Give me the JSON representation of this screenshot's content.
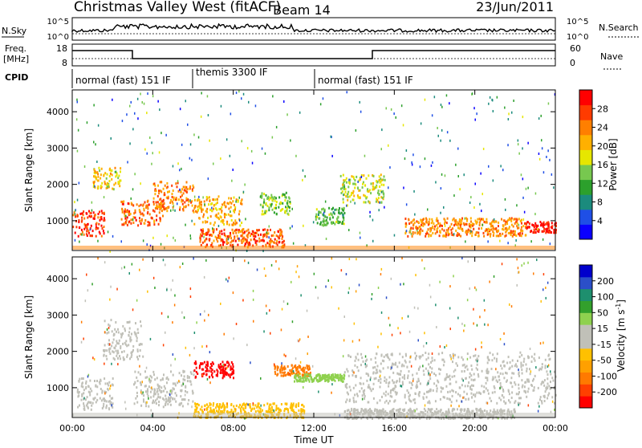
{
  "header": {
    "station": "Christmas Valley West (fitACF)",
    "beam": "Beam 14",
    "date": "23/Jun/2011"
  },
  "noise_panel": {
    "left_label": "N.Sky",
    "right_label": "N.Search",
    "y_ticks": [
      "10^5",
      "10^0"
    ]
  },
  "freq_panel": {
    "left_label_line1": "Freq.",
    "left_label_line2": "[MHz]",
    "right_label": "Nave",
    "left_ticks": [
      "18",
      "8"
    ],
    "right_ticks": [
      "60",
      "0"
    ]
  },
  "cpid_panel": {
    "label": "CPID",
    "segments": [
      {
        "text": "normal (fast) 151 IF",
        "start_hour": 0,
        "end_hour": 6
      },
      {
        "text": "themis 3300 IF",
        "start_hour": 6,
        "end_hour": 12
      },
      {
        "text": "normal (fast) 151 IF",
        "start_hour": 12,
        "end_hour": 24
      }
    ]
  },
  "chart_data": [
    {
      "type": "heatmap",
      "title": "",
      "xlabel": "Time UT",
      "ylabel": "Slant Range [km]",
      "xlim": [
        0,
        24
      ],
      "ylim": [
        180,
        4600
      ],
      "x_ticks": [
        "00:00",
        "04:00",
        "08:00",
        "12:00",
        "16:00",
        "20:00",
        "00:00"
      ],
      "y_ticks": [
        "1000",
        "2000",
        "3000",
        "4000"
      ],
      "colorbar": {
        "label": "Power [dB]",
        "ticks": [
          "4",
          "8",
          "12",
          "16",
          "20",
          "24",
          "28"
        ],
        "range": [
          0,
          30
        ],
        "colors": [
          "#0a00ff",
          "#1f4fe6",
          "#1b8b7d",
          "#2ca02c",
          "#77c84f",
          "#e6e600",
          "#ffb000",
          "#ff7f00",
          "#ff3b00",
          "#ff0000"
        ]
      },
      "echo_regions": [
        {
          "t0": 0.0,
          "t1": 1.6,
          "r0": 600,
          "r1": 1300,
          "power": 26
        },
        {
          "t0": 1.0,
          "t1": 2.4,
          "r0": 1900,
          "r1": 2500,
          "power": 18
        },
        {
          "t0": 2.4,
          "t1": 4.5,
          "r0": 900,
          "r1": 1600,
          "power": 24
        },
        {
          "t0": 4.0,
          "t1": 6.0,
          "r0": 1300,
          "r1": 2100,
          "power": 22
        },
        {
          "t0": 6.0,
          "t1": 8.4,
          "r0": 900,
          "r1": 1700,
          "power": 20
        },
        {
          "t0": 6.3,
          "t1": 10.5,
          "r0": 300,
          "r1": 800,
          "power": 24
        },
        {
          "t0": 9.3,
          "t1": 10.8,
          "r0": 1200,
          "r1": 1800,
          "power": 14
        },
        {
          "t0": 12.0,
          "t1": 13.5,
          "r0": 900,
          "r1": 1400,
          "power": 12
        },
        {
          "t0": 13.3,
          "t1": 15.5,
          "r0": 1500,
          "r1": 2300,
          "power": 16
        },
        {
          "t0": 16.5,
          "t1": 22.5,
          "r0": 600,
          "r1": 1100,
          "power": 22
        },
        {
          "t0": 22.5,
          "t1": 24.0,
          "r0": 700,
          "r1": 1000,
          "power": 28
        }
      ]
    },
    {
      "type": "heatmap",
      "title": "",
      "xlabel": "Time UT",
      "ylabel": "Slant Range [km]",
      "xlim": [
        0,
        24
      ],
      "ylim": [
        180,
        4600
      ],
      "x_ticks": [
        "00:00",
        "04:00",
        "08:00",
        "12:00",
        "16:00",
        "20:00",
        "00:00"
      ],
      "y_ticks": [
        "1000",
        "2000",
        "3000",
        "4000"
      ],
      "colorbar": {
        "label": "Velocity [m s",
        "label_superscript": "-1",
        "label_close": "]",
        "ticks": [
          "200",
          "100",
          "50",
          "15",
          "-15",
          "-50",
          "-100",
          "-200"
        ],
        "range": [
          -250,
          250
        ],
        "colors": [
          "#0000cc",
          "#2b4fc8",
          "#1e8f6e",
          "#33a02c",
          "#8fd14f",
          "#c0c0b8",
          "#c0c0b8",
          "#ffc000",
          "#ffa000",
          "#ff7a00",
          "#ff4000",
          "#ff0000"
        ]
      },
      "echo_regions": [
        {
          "t0": 0.2,
          "t1": 2.0,
          "r0": 400,
          "r1": 1300,
          "velocity": 0
        },
        {
          "t0": 1.5,
          "t1": 3.5,
          "r0": 1800,
          "r1": 2900,
          "velocity": 0
        },
        {
          "t0": 3.0,
          "t1": 6.0,
          "r0": 500,
          "r1": 1500,
          "velocity": 0
        },
        {
          "t0": 6.0,
          "t1": 8.0,
          "r0": 1300,
          "r1": 1750,
          "velocity": -220
        },
        {
          "t0": 6.0,
          "t1": 11.5,
          "r0": 200,
          "r1": 600,
          "velocity": -60
        },
        {
          "t0": 10.0,
          "t1": 11.8,
          "r0": 1350,
          "r1": 1650,
          "velocity": -150
        },
        {
          "t0": 11.0,
          "t1": 13.5,
          "r0": 1200,
          "r1": 1400,
          "velocity": 60
        },
        {
          "t0": 13.5,
          "t1": 24.0,
          "r0": 600,
          "r1": 2000,
          "velocity": 0
        },
        {
          "t0": 13.5,
          "t1": 22.0,
          "r0": 180,
          "r1": 450,
          "velocity": 30
        }
      ]
    }
  ]
}
